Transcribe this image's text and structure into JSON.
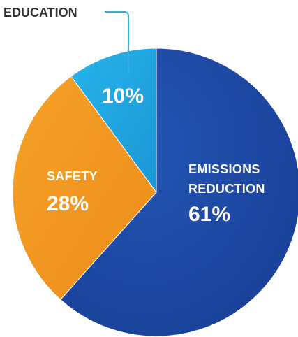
{
  "chart_data": {
    "type": "pie",
    "slices": [
      {
        "label": "EMISSIONS REDUCTION",
        "label_lines": [
          "EMISSIONS",
          "REDUCTION"
        ],
        "value": 61,
        "value_label": "61%",
        "color": "#1a45a3"
      },
      {
        "label": "SAFETY",
        "label_lines": [
          "SAFETY"
        ],
        "value": 28,
        "value_label": "28%",
        "color": "#f29620"
      },
      {
        "label": "EDUCATION",
        "label_lines": [],
        "value": 10,
        "value_label": "10%",
        "color": "#1ea6e0"
      }
    ],
    "callout": {
      "slice": "EDUCATION",
      "text": "EDUCATION"
    },
    "start": "12 o'clock",
    "direction": "clockwise"
  }
}
